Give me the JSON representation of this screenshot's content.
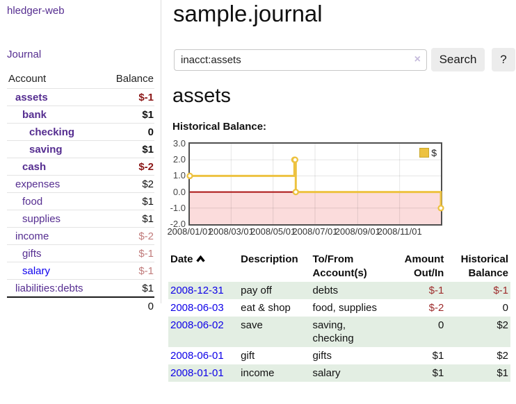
{
  "app": {
    "title": "hledger-web"
  },
  "sidebar": {
    "journal_label": "Journal",
    "accounts_table": {
      "headers": {
        "account": "Account",
        "balance": "Balance"
      },
      "rows": [
        {
          "account": "assets",
          "level": 1,
          "bold": true,
          "link_color": "purple",
          "balance": "$-1",
          "balance_tone": "neg-strong"
        },
        {
          "account": "bank",
          "level": 2,
          "bold": true,
          "link_color": "purple",
          "balance": "$1",
          "balance_tone": "normal"
        },
        {
          "account": "checking",
          "level": 3,
          "bold": true,
          "link_color": "purple",
          "balance": "0",
          "balance_tone": "normal"
        },
        {
          "account": "saving",
          "level": 3,
          "bold": true,
          "link_color": "purple",
          "balance": "$1",
          "balance_tone": "normal"
        },
        {
          "account": "cash",
          "level": 2,
          "bold": true,
          "link_color": "purple",
          "balance": "$-2",
          "balance_tone": "neg-strong"
        },
        {
          "account": "expenses",
          "level": 1,
          "bold": false,
          "link_color": "purple",
          "balance": "$2",
          "balance_tone": "normal"
        },
        {
          "account": "food",
          "level": 2,
          "bold": false,
          "link_color": "purple",
          "balance": "$1",
          "balance_tone": "normal"
        },
        {
          "account": "supplies",
          "level": 2,
          "bold": false,
          "link_color": "purple",
          "balance": "$1",
          "balance_tone": "normal"
        },
        {
          "account": "income",
          "level": 1,
          "bold": false,
          "link_color": "purple",
          "balance": "$-2",
          "balance_tone": "neg-weak"
        },
        {
          "account": "gifts",
          "level": 2,
          "bold": false,
          "link_color": "purple",
          "balance": "$-1",
          "balance_tone": "neg-weak"
        },
        {
          "account": "salary",
          "level": 2,
          "bold": false,
          "link_color": "blue",
          "balance": "$-1",
          "balance_tone": "neg-weak"
        },
        {
          "account": "liabilities:debts",
          "level": 1,
          "bold": false,
          "link_color": "purple",
          "balance": "$1",
          "balance_tone": "normal"
        }
      ],
      "total": "0"
    }
  },
  "main": {
    "title": "sample.journal",
    "search": {
      "value": "inacct:assets",
      "clear_icon": "×",
      "button_label": "Search",
      "help_label": "?"
    },
    "account_heading": "assets"
  },
  "chart_data": {
    "type": "line",
    "style": "steps",
    "title": "Historical Balance:",
    "series": [
      {
        "name": "$",
        "color": "#edc240",
        "points": [
          [
            "2008-01-01",
            1
          ],
          [
            "2008-06-01",
            2
          ],
          [
            "2008-06-02",
            2
          ],
          [
            "2008-06-03",
            0
          ],
          [
            "2008-12-31",
            -1
          ]
        ]
      }
    ],
    "x_range": [
      "2008-01-01",
      "2008-12-31"
    ],
    "ylim": [
      -2.0,
      3.0
    ],
    "y_ticks": [
      "3.0",
      "2.0",
      "1.0",
      "0.0",
      "-1.0",
      "-2.0"
    ],
    "x_ticks": [
      "2008/01/01",
      "2008/03/01",
      "2008/05/01",
      "2008/07/01",
      "2008/09/01",
      "2008/11/01"
    ],
    "legend": {
      "label": "$",
      "position": "top-right"
    },
    "grid": true,
    "colors": {
      "negative_region": "#fbdcdc",
      "zero_line": "#aa1111",
      "gridline": "rgba(0,0,0,0.10)",
      "border": "#4f4f4f"
    }
  },
  "register": {
    "headers": {
      "date": "Date",
      "description": "Description",
      "accounts": "To/From Account(s)",
      "amount": "Amount Out/In",
      "balance": "Historical Balance"
    },
    "sort": {
      "column": "date",
      "direction": "ascending"
    },
    "rows": [
      {
        "date": "2008-12-31",
        "description": "pay off",
        "accounts": "debts",
        "amount": "$-1",
        "amount_neg": true,
        "balance": "$-1",
        "balance_neg": true,
        "shaded": true
      },
      {
        "date": "2008-06-03",
        "description": "eat & shop",
        "accounts": "food, supplies",
        "amount": "$-2",
        "amount_neg": true,
        "balance": "0",
        "balance_neg": false,
        "shaded": false
      },
      {
        "date": "2008-06-02",
        "description": "save",
        "accounts": "saving, checking",
        "amount": "0",
        "amount_neg": false,
        "balance": "$2",
        "balance_neg": false,
        "shaded": true
      },
      {
        "date": "2008-06-01",
        "description": "gift",
        "accounts": "gifts",
        "amount": "$1",
        "amount_neg": false,
        "balance": "$2",
        "balance_neg": false,
        "shaded": false
      },
      {
        "date": "2008-01-01",
        "description": "income",
        "accounts": "salary",
        "amount": "$1",
        "amount_neg": false,
        "balance": "$1",
        "balance_neg": false,
        "shaded": true
      }
    ]
  }
}
